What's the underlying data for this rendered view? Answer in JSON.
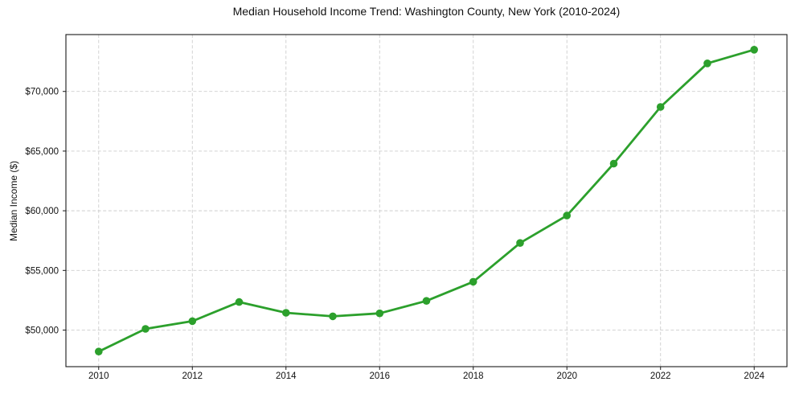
{
  "chart_data": {
    "type": "line",
    "title": "Median Household Income Trend: Washington County, New York (2010-2024)",
    "xlabel": "",
    "ylabel": "Median Income ($)",
    "x": [
      2010,
      2011,
      2012,
      2013,
      2014,
      2015,
      2016,
      2017,
      2018,
      2019,
      2020,
      2021,
      2022,
      2023,
      2024
    ],
    "values": [
      48200,
      50100,
      50750,
      52350,
      51450,
      51150,
      51400,
      52450,
      54050,
      57300,
      59600,
      63950,
      68700,
      72350,
      73500
    ],
    "x_ticks": [
      2010,
      2012,
      2014,
      2016,
      2018,
      2020,
      2022,
      2024
    ],
    "x_tick_labels": [
      "2010",
      "2012",
      "2014",
      "2016",
      "2018",
      "2020",
      "2022",
      "2024"
    ],
    "y_ticks": [
      50000,
      55000,
      60000,
      65000,
      70000
    ],
    "y_tick_labels": [
      "$50,000",
      "$55,000",
      "$60,000",
      "$65,000",
      "$70,000"
    ],
    "xlim": [
      2009.3,
      2024.7
    ],
    "ylim": [
      46935,
      74765
    ],
    "grid": true,
    "grid_style": "dashed",
    "legend": "none",
    "line_color": "#2ca02c",
    "marker": "circle",
    "grid_color": "#cdcdcd",
    "spine_color": "#1a1a1a",
    "background": "#ffffff"
  }
}
